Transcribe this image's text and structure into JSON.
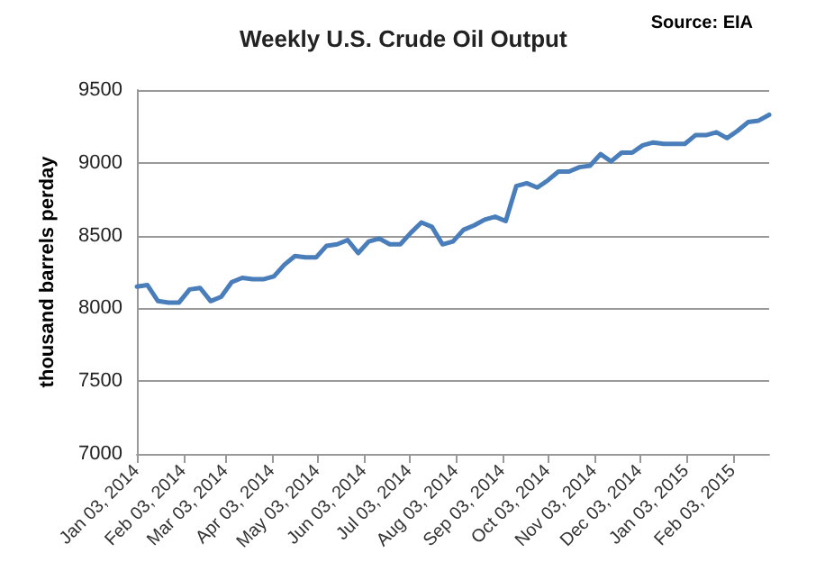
{
  "chart_data": {
    "type": "line",
    "title": "Weekly U.S. Crude Oil Output",
    "ylabel": "thousand barrels perday",
    "annotations": [
      "Source: EIA"
    ],
    "x": [
      "2014-01-03",
      "2014-01-10",
      "2014-01-17",
      "2014-01-24",
      "2014-01-31",
      "2014-02-07",
      "2014-02-14",
      "2014-02-21",
      "2014-02-28",
      "2014-03-07",
      "2014-03-14",
      "2014-03-21",
      "2014-03-28",
      "2014-04-04",
      "2014-04-11",
      "2014-04-18",
      "2014-04-25",
      "2014-05-02",
      "2014-05-09",
      "2014-05-16",
      "2014-05-23",
      "2014-05-30",
      "2014-06-06",
      "2014-06-13",
      "2014-06-20",
      "2014-06-27",
      "2014-07-04",
      "2014-07-11",
      "2014-07-18",
      "2014-07-25",
      "2014-08-01",
      "2014-08-08",
      "2014-08-15",
      "2014-08-22",
      "2014-08-29",
      "2014-09-05",
      "2014-09-12",
      "2014-09-19",
      "2014-09-26",
      "2014-10-03",
      "2014-10-10",
      "2014-10-17",
      "2014-10-24",
      "2014-10-31",
      "2014-11-07",
      "2014-11-14",
      "2014-11-21",
      "2014-11-28",
      "2014-12-05",
      "2014-12-12",
      "2014-12-19",
      "2014-12-26",
      "2015-01-02",
      "2015-01-09",
      "2015-01-16",
      "2015-01-23",
      "2015-01-30",
      "2015-02-06",
      "2015-02-13",
      "2015-02-20",
      "2015-02-27"
    ],
    "series": [
      {
        "color": "#4a7ebb",
        "values": [
          8150,
          8160,
          8050,
          8040,
          8040,
          8130,
          8140,
          8050,
          8080,
          8180,
          8210,
          8200,
          8200,
          8220,
          8300,
          8360,
          8350,
          8350,
          8430,
          8440,
          8470,
          8380,
          8460,
          8480,
          8440,
          8440,
          8520,
          8590,
          8560,
          8440,
          8460,
          8540,
          8570,
          8610,
          8630,
          8600,
          8840,
          8860,
          8830,
          8880,
          8940,
          8940,
          8970,
          8980,
          9060,
          9010,
          9070,
          9070,
          9120,
          9140,
          9130,
          9130,
          9130,
          9190,
          9190,
          9210,
          9170,
          9220,
          9280,
          9290,
          9330
        ]
      }
    ],
    "xlim": [
      "2014-01-03",
      "2015-02-27"
    ],
    "xticks": [
      {
        "value": "2014-01-03",
        "label": "Jan 03, 2014"
      },
      {
        "value": "2014-02-03",
        "label": "Feb 03, 2014"
      },
      {
        "value": "2014-03-03",
        "label": "Mar 03, 2014"
      },
      {
        "value": "2014-04-03",
        "label": "Apr 03, 2014"
      },
      {
        "value": "2014-05-03",
        "label": "May 03, 2014"
      },
      {
        "value": "2014-06-03",
        "label": "Jun 03, 2014"
      },
      {
        "value": "2014-07-03",
        "label": "Jul 03, 2014"
      },
      {
        "value": "2014-08-03",
        "label": "Aug 03, 2014"
      },
      {
        "value": "2014-09-03",
        "label": "Sep 03, 2014"
      },
      {
        "value": "2014-10-03",
        "label": "Oct 03, 2014"
      },
      {
        "value": "2014-11-03",
        "label": "Nov 03, 2014"
      },
      {
        "value": "2014-12-03",
        "label": "Dec 03, 2014"
      },
      {
        "value": "2015-01-03",
        "label": "Jan 03, 2015"
      },
      {
        "value": "2015-02-03",
        "label": "Feb 03, 2015"
      }
    ],
    "ylim": [
      7000,
      9500
    ],
    "yticks": [
      7000,
      7500,
      8000,
      8500,
      9000,
      9500
    ],
    "grid": "y",
    "marker": "none",
    "line_style": "solid"
  }
}
